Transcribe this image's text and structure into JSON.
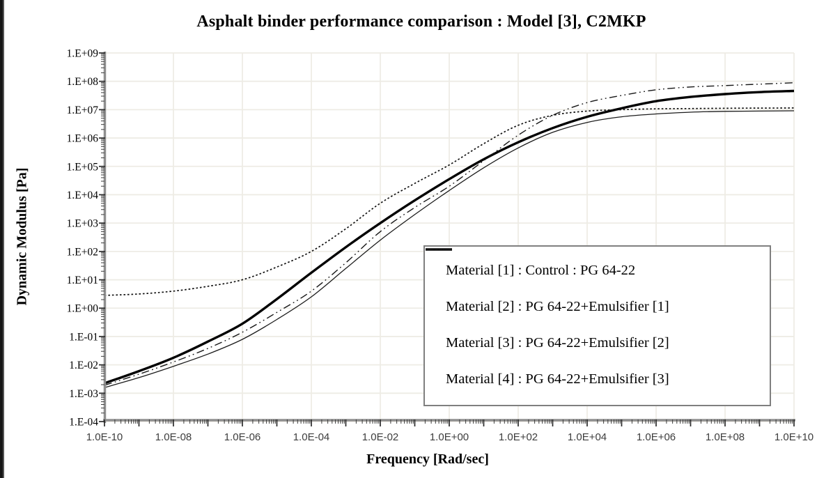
{
  "page": {
    "background": "#ffffff",
    "edge_artifact_color": "#161616"
  },
  "colors": {
    "grid": "#eeece5",
    "axis": "#8f8f8f",
    "curves": "#000000",
    "legend_border": "#7f7f7f",
    "x_tick_text": "#3d3d3d"
  },
  "chart_data": {
    "type": "line",
    "title": "Asphalt binder performance comparison : Model [3], C2MKP",
    "xlabel": "Frequency [Rad/sec]",
    "ylabel": "Dynamic Modulus [Pa]",
    "x_scale": "log",
    "y_scale": "log",
    "x_range_exponents": [
      -10,
      10
    ],
    "y_range_exponents": [
      -4,
      9
    ],
    "grid": true,
    "legend_position": "inside-bottom-right",
    "x_tick_labels": [
      "1.0E-10",
      "1.0E-08",
      "1.0E-06",
      "1.0E-04",
      "1.0E-02",
      "1.0E+00",
      "1.0E+02",
      "1.0E+04",
      "1.0E+06",
      "1.0E+08",
      "1.0E+10"
    ],
    "y_tick_labels": [
      "1.E+09",
      "1.E+08",
      "1.E+07",
      "1.E+06",
      "1.E+05",
      "1.E+04",
      "1.E+03",
      "1.E+02",
      "1.E+01",
      "1.E+00",
      "1.E-01",
      "1.E-02",
      "1.E-03",
      "1.E-04"
    ],
    "x_log10_frequency": [
      -10,
      -9,
      -8,
      -7,
      -6,
      -5,
      -4,
      -3,
      -2,
      -1,
      0,
      1,
      2,
      3,
      4,
      5,
      6,
      7,
      8,
      9,
      10
    ],
    "series": [
      {
        "name": "Material [1] : Control : PG 64-22",
        "line_style": "thick-solid",
        "color": "#000000",
        "log10_modulus": [
          -2.65,
          -2.22,
          -1.75,
          -1.18,
          -0.55,
          0.32,
          1.25,
          2.15,
          3.0,
          3.8,
          4.55,
          5.25,
          5.85,
          6.35,
          6.75,
          7.05,
          7.3,
          7.45,
          7.55,
          7.62,
          7.66
        ]
      },
      {
        "name": "Material [2] : PG 64-22+Emulsifier [1]",
        "line_style": "thin-solid",
        "color": "#000000",
        "log10_modulus": [
          -2.8,
          -2.45,
          -2.05,
          -1.62,
          -1.1,
          -0.4,
          0.4,
          1.4,
          2.4,
          3.3,
          4.15,
          4.95,
          5.65,
          6.2,
          6.55,
          6.75,
          6.85,
          6.91,
          6.94,
          6.95,
          6.96
        ]
      },
      {
        "name": "Material [3] : PG 64-22+Emulsifier [2]",
        "line_style": "dotted",
        "color": "#000000",
        "log10_modulus": [
          0.45,
          0.5,
          0.6,
          0.77,
          1.0,
          1.45,
          2.0,
          2.8,
          3.7,
          4.4,
          5.05,
          5.8,
          6.45,
          6.8,
          6.95,
          7.0,
          7.03,
          7.04,
          7.05,
          7.055,
          7.06
        ]
      },
      {
        "name": "Material [4] : PG 64-22+Emulsifier [3]",
        "line_style": "dash-dot-dot",
        "color": "#000000",
        "log10_modulus": [
          -2.72,
          -2.33,
          -1.9,
          -1.42,
          -0.85,
          -0.15,
          0.6,
          1.6,
          2.7,
          3.55,
          4.3,
          5.2,
          6.1,
          6.8,
          7.25,
          7.5,
          7.7,
          7.8,
          7.85,
          7.9,
          7.95
        ]
      }
    ]
  }
}
